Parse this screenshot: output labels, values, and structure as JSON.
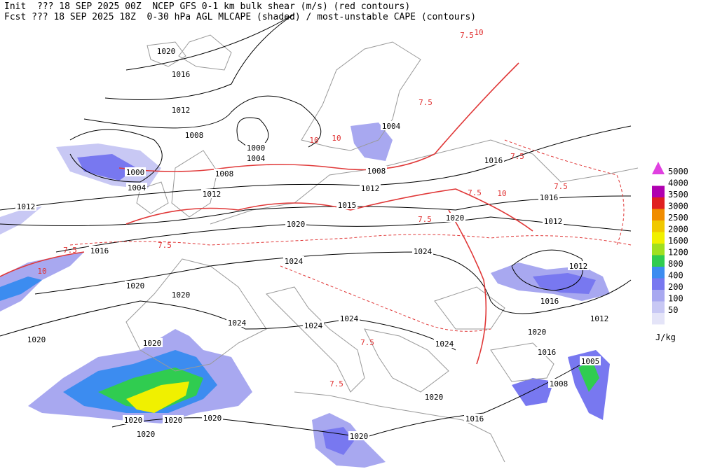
{
  "header": {
    "line1": "Init  ??? 18 SEP 2025 00Z  NCEP GFS 0-1 km bulk shear (m/s) (red contours)",
    "line2": "Fcst ??? 18 SEP 2025 18Z  0-30 hPa AGL MLCAPE (shaded) / most-unstable CAPE (contours)"
  },
  "colorbar": {
    "levels": [
      50,
      100,
      200,
      400,
      800,
      1200,
      1600,
      2000,
      2500,
      3000,
      3500,
      4000,
      5000
    ],
    "colors": [
      "#e4e4f8",
      "#c8c8f4",
      "#a8a8f0",
      "#7878f0",
      "#3c8cf0",
      "#30cc50",
      "#a0e020",
      "#f0f000",
      "#f0c800",
      "#f08c00",
      "#e02020",
      "#b000b0",
      "#e040e0"
    ],
    "unit": "J/kg"
  },
  "isobar_labels": [
    1020,
    1016,
    1012,
    1008,
    1000,
    1004,
    1000,
    1004,
    1008,
    1012,
    1012,
    1016,
    1015,
    1020,
    1020,
    1024,
    1024,
    1020,
    1020,
    1024,
    1024,
    1024,
    1020,
    1020,
    1024,
    1004,
    1008,
    1012,
    1016,
    1016,
    1012,
    1012,
    1016,
    1020,
    1012,
    1016,
    1005,
    1008,
    1020,
    1016,
    1020,
    1020,
    1020,
    1020,
    1020
  ],
  "shear_labels": [
    7.5,
    10,
    10,
    7.5,
    10,
    7.5,
    7.5,
    10,
    7.5,
    7.5,
    7.5,
    7.5,
    7.5,
    7.5,
    10
  ]
}
